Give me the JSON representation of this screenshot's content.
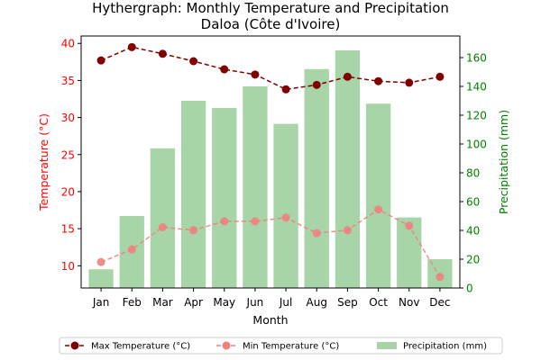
{
  "chart_data": {
    "type": "bar+line",
    "title_line1": "Hythergraph: Monthly Temperature and Precipitation",
    "title_line2": "Daloa (Côte d'Ivoire)",
    "xlabel": "Month",
    "ylabel_left": "Temperature (°C)",
    "ylabel_right": "Precipitation (mm)",
    "categories": [
      "Jan",
      "Feb",
      "Mar",
      "Apr",
      "May",
      "Jun",
      "Jul",
      "Aug",
      "Sep",
      "Oct",
      "Nov",
      "Dec"
    ],
    "ylim_left": [
      7,
      41
    ],
    "ylim_right": [
      0,
      175
    ],
    "yticks_left": [
      "10",
      "15",
      "20",
      "25",
      "30",
      "35",
      "40"
    ],
    "yticks_right": [
      "0",
      "20",
      "40",
      "60",
      "80",
      "100",
      "120",
      "140",
      "160"
    ],
    "series": [
      {
        "name": "Max Temperature (°C)",
        "axis": "left",
        "kind": "line",
        "color": "#800000",
        "linestyle": "dashed",
        "values": [
          37.7,
          39.5,
          38.6,
          37.6,
          36.5,
          35.8,
          33.8,
          34.4,
          35.5,
          34.9,
          34.7,
          35.5
        ]
      },
      {
        "name": "Min Temperature (°C)",
        "axis": "left",
        "kind": "line",
        "color": "#f08080",
        "linestyle": "dashed",
        "values": [
          10.5,
          12.2,
          15.2,
          14.8,
          16.0,
          16.0,
          16.5,
          14.4,
          14.8,
          17.6,
          15.4,
          8.5
        ]
      },
      {
        "name": "Precipitation (mm)",
        "axis": "right",
        "kind": "bar",
        "color": "#a8d5a8",
        "values": [
          13,
          50,
          97,
          130,
          125,
          140,
          114,
          152,
          165,
          128,
          49,
          20
        ]
      }
    ],
    "legend_position": "bottom-center",
    "left_axis_color": "#ff0000",
    "right_axis_color": "#008000"
  }
}
